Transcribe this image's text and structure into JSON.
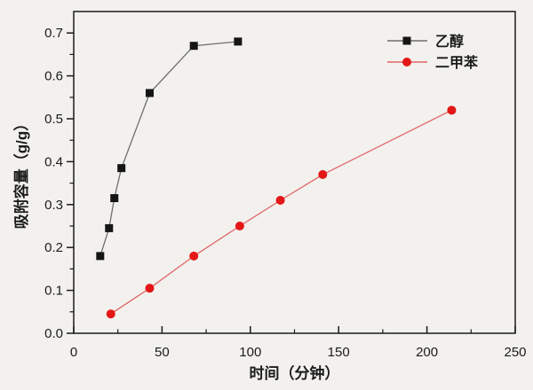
{
  "figure": {
    "background_color": "#f2f1ee",
    "frame_color": "#1a1a1a",
    "text_color": "#1b1b1b"
  },
  "chart_data": {
    "type": "line",
    "title": "",
    "xlabel": "时间（分钟）",
    "ylabel": "吸附容量（g/g）",
    "xlim": [
      0,
      250
    ],
    "ylim": [
      0,
      0.75
    ],
    "x_major_ticks": [
      0,
      50,
      100,
      150,
      200,
      250
    ],
    "x_minor_tick_step": 25,
    "y_major_ticks": [
      0.0,
      0.1,
      0.2,
      0.3,
      0.4,
      0.5,
      0.6,
      0.7
    ],
    "y_minor_tick_step": 0.05,
    "grid": false,
    "legend_position": "top-right-inside",
    "series": [
      {
        "name": "乙醇",
        "marker": "square",
        "marker_color": "#151515",
        "line_color": "#6e6e6e",
        "x": [
          15,
          20,
          23,
          27,
          43,
          68,
          93
        ],
        "y": [
          0.18,
          0.245,
          0.315,
          0.385,
          0.56,
          0.67,
          0.68
        ]
      },
      {
        "name": "二甲苯",
        "marker": "circle",
        "marker_color": "#e41717",
        "line_color": "#e06565",
        "x": [
          21,
          43,
          68,
          94,
          117,
          141,
          214
        ],
        "y": [
          0.045,
          0.105,
          0.18,
          0.25,
          0.31,
          0.37,
          0.52
        ]
      }
    ]
  }
}
